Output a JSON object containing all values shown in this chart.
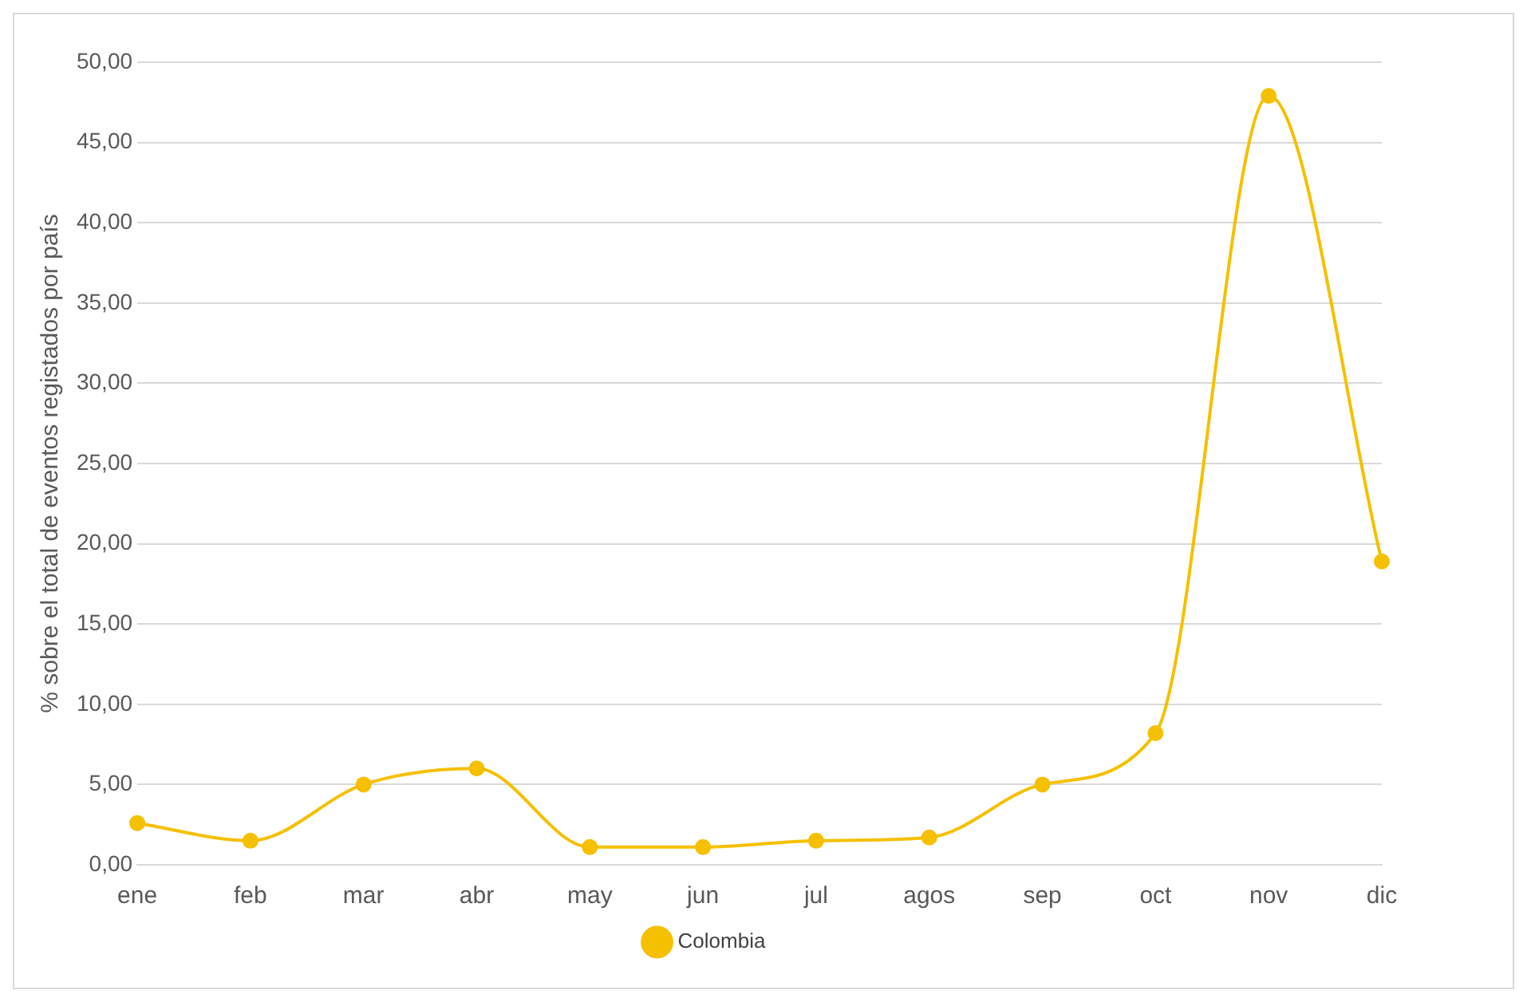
{
  "chart_data": {
    "type": "line",
    "ylabel": "% sobre el total de eventos registados por país",
    "categories": [
      "ene",
      "feb",
      "mar",
      "abr",
      "may",
      "jun",
      "jul",
      "agos",
      "sep",
      "oct",
      "nov",
      "dic"
    ],
    "series": [
      {
        "name": "Colombia",
        "color": "#f5c000",
        "values": [
          2.6,
          1.5,
          5.0,
          6.0,
          1.1,
          1.1,
          1.5,
          1.7,
          5.0,
          8.2,
          47.9,
          18.9
        ]
      }
    ],
    "ylim": [
      0,
      50
    ],
    "yticks": [
      {
        "value": 0,
        "label": "0,00"
      },
      {
        "value": 5,
        "label": "5,00"
      },
      {
        "value": 10,
        "label": "10,00"
      },
      {
        "value": 15,
        "label": "15,00"
      },
      {
        "value": 20,
        "label": "20,00"
      },
      {
        "value": 25,
        "label": "25,00"
      },
      {
        "value": 30,
        "label": "30,00"
      },
      {
        "value": 35,
        "label": "35,00"
      },
      {
        "value": 40,
        "label": "40,00"
      },
      {
        "value": 45,
        "label": "45,00"
      },
      {
        "value": 50,
        "label": "50,00"
      }
    ],
    "grid": "y",
    "legend": "bottom",
    "marker": "circle",
    "line_style": "solid"
  }
}
